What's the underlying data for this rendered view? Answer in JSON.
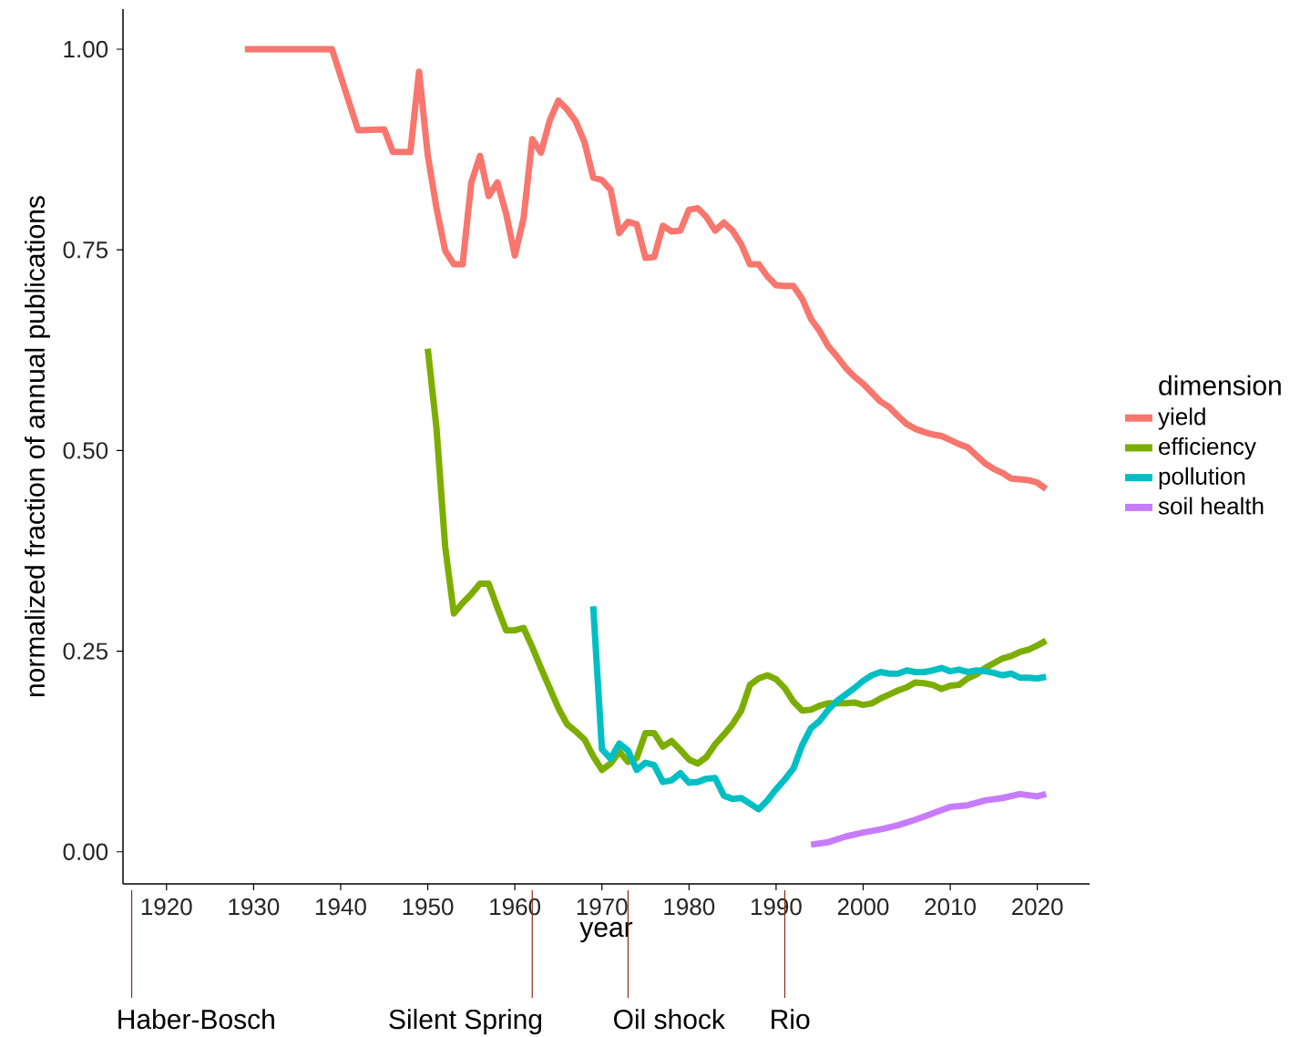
{
  "chart_data": {
    "type": "line",
    "xlabel": "year",
    "ylabel": "normalized fraction of annual publications",
    "legend_title": "dimension",
    "legend": "right",
    "grid": false,
    "marker": "none",
    "xlim": [
      1915,
      2026
    ],
    "ylim": [
      -0.04,
      1.05
    ],
    "xticks": [
      1920,
      1930,
      1940,
      1950,
      1960,
      1970,
      1980,
      1990,
      2000,
      2010,
      2020
    ],
    "yticks": [
      {
        "value": 0,
        "label": "0.00"
      },
      {
        "value": 0.25,
        "label": "0.25"
      },
      {
        "value": 0.5,
        "label": "0.50"
      },
      {
        "value": 0.75,
        "label": "0.75"
      },
      {
        "value": 1,
        "label": "1.00"
      }
    ],
    "ref_lines": [
      {
        "axis": "x",
        "value": 1916,
        "label": "Haber-Bosch",
        "color": "#8b2a1a"
      },
      {
        "axis": "x",
        "value": 1962,
        "label": "Silent Spring",
        "color": "#8b2a1a"
      },
      {
        "axis": "x",
        "value": 1973,
        "label": "Oil shock",
        "color": "#8b2a1a"
      },
      {
        "axis": "x",
        "value": 1991,
        "label": "Rio",
        "color": "#8b2a1a"
      }
    ],
    "series": [
      {
        "name": "yield",
        "color": "#f8766d",
        "x": [
          1929,
          1939,
          1942,
          1945,
          1946,
          1948,
          1949,
          1950,
          1951,
          1952,
          1953,
          1954,
          1955,
          1956,
          1957,
          1958,
          1959,
          1960,
          1961,
          1962,
          1963,
          1964,
          1965,
          1966,
          1967,
          1968,
          1969,
          1970,
          1971,
          1972,
          1973,
          1974,
          1975,
          1976,
          1977,
          1978,
          1979,
          1980,
          1981,
          1982,
          1983,
          1984,
          1985,
          1986,
          1987,
          1988,
          1989,
          1990,
          1991,
          1992,
          1993,
          1994,
          1995,
          1996,
          1997,
          1998,
          1999,
          2000,
          2001,
          2002,
          2003,
          2004,
          2005,
          2006,
          2007,
          2008,
          2009,
          2010,
          2011,
          2012,
          2013,
          2014,
          2015,
          2016,
          2017,
          2018,
          2019,
          2020,
          2021
        ],
        "values": [
          1.0,
          1.0,
          0.899,
          0.9,
          0.872,
          0.872,
          0.972,
          0.868,
          0.802,
          0.749,
          0.732,
          0.732,
          0.834,
          0.867,
          0.817,
          0.834,
          0.795,
          0.743,
          0.789,
          0.888,
          0.871,
          0.911,
          0.936,
          0.925,
          0.91,
          0.884,
          0.84,
          0.837,
          0.825,
          0.771,
          0.785,
          0.782,
          0.74,
          0.741,
          0.78,
          0.773,
          0.774,
          0.8,
          0.802,
          0.791,
          0.774,
          0.784,
          0.774,
          0.757,
          0.732,
          0.732,
          0.717,
          0.706,
          0.705,
          0.705,
          0.689,
          0.664,
          0.649,
          0.63,
          0.617,
          0.603,
          0.592,
          0.583,
          0.572,
          0.561,
          0.554,
          0.543,
          0.533,
          0.527,
          0.523,
          0.52,
          0.518,
          0.513,
          0.508,
          0.504,
          0.494,
          0.484,
          0.477,
          0.472,
          0.465,
          0.464,
          0.463,
          0.46,
          0.452
        ]
      },
      {
        "name": "efficiency",
        "color": "#7cae00",
        "x": [
          1950,
          1951,
          1952,
          1953,
          1954,
          1955,
          1956,
          1957,
          1958,
          1959,
          1960,
          1961,
          1962,
          1963,
          1964,
          1965,
          1966,
          1967,
          1968,
          1969,
          1970,
          1971,
          1972,
          1973,
          1974,
          1975,
          1976,
          1977,
          1978,
          1979,
          1980,
          1981,
          1982,
          1983,
          1984,
          1985,
          1986,
          1987,
          1988,
          1989,
          1990,
          1991,
          1992,
          1993,
          1994,
          1995,
          1996,
          1997,
          1998,
          1999,
          2000,
          2001,
          2002,
          2003,
          2004,
          2005,
          2006,
          2007,
          2008,
          2009,
          2010,
          2011,
          2012,
          2013,
          2014,
          2015,
          2016,
          2017,
          2018,
          2019,
          2020,
          2021
        ],
        "values": [
          0.627,
          0.528,
          0.38,
          0.297,
          0.31,
          0.321,
          0.334,
          0.334,
          0.304,
          0.276,
          0.276,
          0.279,
          0.255,
          0.229,
          0.204,
          0.179,
          0.159,
          0.15,
          0.14,
          0.119,
          0.102,
          0.11,
          0.125,
          0.112,
          0.117,
          0.148,
          0.148,
          0.131,
          0.138,
          0.127,
          0.115,
          0.11,
          0.118,
          0.134,
          0.146,
          0.159,
          0.176,
          0.208,
          0.216,
          0.22,
          0.215,
          0.204,
          0.187,
          0.176,
          0.177,
          0.182,
          0.185,
          0.185,
          0.185,
          0.186,
          0.183,
          0.185,
          0.191,
          0.196,
          0.201,
          0.205,
          0.211,
          0.21,
          0.208,
          0.203,
          0.207,
          0.208,
          0.216,
          0.221,
          0.229,
          0.235,
          0.241,
          0.244,
          0.249,
          0.252,
          0.257,
          0.263
        ]
      },
      {
        "name": "pollution",
        "color": "#00bfc4",
        "x": [
          1969,
          1970,
          1971,
          1972,
          1973,
          1974,
          1975,
          1976,
          1977,
          1978,
          1979,
          1980,
          1981,
          1982,
          1983,
          1984,
          1985,
          1986,
          1987,
          1988,
          1989,
          1990,
          1991,
          1992,
          1993,
          1994,
          1995,
          1996,
          1997,
          1998,
          1999,
          2000,
          2001,
          2002,
          2003,
          2004,
          2005,
          2006,
          2007,
          2008,
          2009,
          2010,
          2011,
          2012,
          2013,
          2014,
          2015,
          2016,
          2017,
          2018,
          2019,
          2020,
          2021
        ],
        "values": [
          0.306,
          0.128,
          0.116,
          0.135,
          0.126,
          0.102,
          0.111,
          0.108,
          0.087,
          0.089,
          0.098,
          0.086,
          0.087,
          0.091,
          0.092,
          0.07,
          0.066,
          0.067,
          0.06,
          0.053,
          0.064,
          0.078,
          0.09,
          0.104,
          0.133,
          0.154,
          0.163,
          0.177,
          0.188,
          0.196,
          0.204,
          0.213,
          0.22,
          0.224,
          0.222,
          0.222,
          0.226,
          0.224,
          0.224,
          0.226,
          0.229,
          0.225,
          0.227,
          0.224,
          0.226,
          0.225,
          0.223,
          0.22,
          0.222,
          0.217,
          0.217,
          0.216,
          0.218
        ]
      },
      {
        "name": "soil health",
        "color": "#c77cff",
        "x": [
          1994,
          1996,
          1998,
          2000,
          2002,
          2004,
          2006,
          2008,
          2010,
          2012,
          2014,
          2016,
          2018,
          2020,
          2021
        ],
        "values": [
          0.009,
          0.012,
          0.019,
          0.024,
          0.028,
          0.033,
          0.04,
          0.048,
          0.056,
          0.058,
          0.064,
          0.067,
          0.072,
          0.069,
          0.072
        ]
      }
    ]
  }
}
